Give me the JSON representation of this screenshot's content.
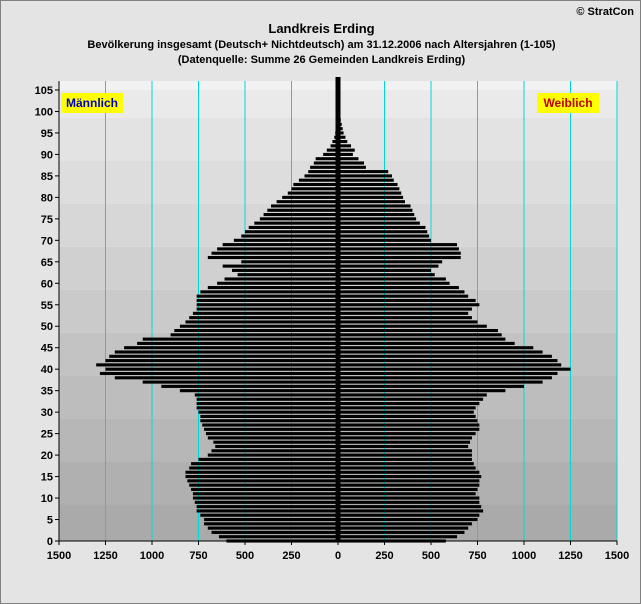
{
  "header": {
    "title": "Landkreis Erding",
    "subtitle": "Bevölkerung  insgesamt (Deutsch+ Nichtdeutsch) am 31.12.2006 nach Altersjahren (1-105)",
    "source": "(Datenquelle: Summe 26 Gemeinden Landkreis Erding)",
    "copyright": "© StratCon"
  },
  "colors": {
    "bar": "#000000",
    "gridline": "#00d8d8",
    "label_bg": "#ffff00",
    "male_label": "#0000c0",
    "female_label": "#c00000",
    "band_light": "#ededed",
    "band_dark": "#cfcfcf"
  },
  "chart_data": {
    "type": "bar",
    "orientation": "horizontal",
    "layout": "population-pyramid",
    "xlim": [
      -1500,
      1500
    ],
    "ylim": [
      0,
      105
    ],
    "x_ticks": [
      "1500",
      "1250",
      "1000",
      "750",
      "500",
      "250",
      "0",
      "250",
      "500",
      "750",
      "1000",
      "1250",
      "1500"
    ],
    "y_ticks": [
      "0",
      "5",
      "10",
      "15",
      "20",
      "25",
      "30",
      "35",
      "40",
      "45",
      "50",
      "55",
      "60",
      "65",
      "70",
      "75",
      "80",
      "85",
      "90",
      "95",
      "100",
      "105"
    ],
    "grid": true,
    "series": [
      {
        "name": "Männlich",
        "side": "left",
        "ages": [
          0,
          1,
          2,
          3,
          4,
          5,
          6,
          7,
          8,
          9,
          10,
          11,
          12,
          13,
          14,
          15,
          16,
          17,
          18,
          19,
          20,
          21,
          22,
          23,
          24,
          25,
          26,
          27,
          28,
          29,
          30,
          31,
          32,
          33,
          34,
          35,
          36,
          37,
          38,
          39,
          40,
          41,
          42,
          43,
          44,
          45,
          46,
          47,
          48,
          49,
          50,
          51,
          52,
          53,
          54,
          55,
          56,
          57,
          58,
          59,
          60,
          61,
          62,
          63,
          64,
          65,
          66,
          67,
          68,
          69,
          70,
          71,
          72,
          73,
          74,
          75,
          76,
          77,
          78,
          79,
          80,
          81,
          82,
          83,
          84,
          85,
          86,
          87,
          88,
          89,
          90,
          91,
          92,
          93,
          94,
          95,
          96,
          97,
          98,
          99,
          100
        ],
        "values": [
          600,
          640,
          680,
          700,
          720,
          720,
          740,
          760,
          760,
          770,
          780,
          780,
          790,
          800,
          810,
          820,
          820,
          800,
          790,
          750,
          700,
          680,
          660,
          670,
          700,
          710,
          720,
          730,
          740,
          740,
          750,
          760,
          760,
          760,
          770,
          850,
          950,
          1050,
          1200,
          1280,
          1250,
          1300,
          1250,
          1230,
          1200,
          1150,
          1080,
          1050,
          900,
          880,
          850,
          820,
          800,
          780,
          760,
          760,
          760,
          760,
          740,
          700,
          650,
          610,
          540,
          570,
          620,
          520,
          700,
          680,
          650,
          620,
          560,
          520,
          500,
          480,
          450,
          420,
          400,
          380,
          360,
          330,
          300,
          270,
          250,
          240,
          210,
          180,
          160,
          150,
          130,
          120,
          80,
          60,
          40,
          30,
          20,
          15,
          10,
          8,
          6,
          4,
          2
        ]
      },
      {
        "name": "Weiblich",
        "side": "right",
        "ages": [
          0,
          1,
          2,
          3,
          4,
          5,
          6,
          7,
          8,
          9,
          10,
          11,
          12,
          13,
          14,
          15,
          16,
          17,
          18,
          19,
          20,
          21,
          22,
          23,
          24,
          25,
          26,
          27,
          28,
          29,
          30,
          31,
          32,
          33,
          34,
          35,
          36,
          37,
          38,
          39,
          40,
          41,
          42,
          43,
          44,
          45,
          46,
          47,
          48,
          49,
          50,
          51,
          52,
          53,
          54,
          55,
          56,
          57,
          58,
          59,
          60,
          61,
          62,
          63,
          64,
          65,
          66,
          67,
          68,
          69,
          70,
          71,
          72,
          73,
          74,
          75,
          76,
          77,
          78,
          79,
          80,
          81,
          82,
          83,
          84,
          85,
          86,
          87,
          88,
          89,
          90,
          91,
          92,
          93,
          94,
          95,
          96,
          97,
          98,
          99,
          100
        ],
        "values": [
          580,
          640,
          680,
          700,
          720,
          750,
          760,
          780,
          770,
          760,
          760,
          740,
          750,
          760,
          760,
          770,
          760,
          740,
          730,
          720,
          720,
          720,
          700,
          710,
          720,
          740,
          760,
          760,
          750,
          740,
          730,
          740,
          760,
          780,
          800,
          900,
          1000,
          1100,
          1150,
          1180,
          1250,
          1200,
          1180,
          1150,
          1100,
          1050,
          950,
          900,
          880,
          860,
          800,
          750,
          720,
          700,
          720,
          760,
          740,
          700,
          680,
          650,
          600,
          580,
          520,
          500,
          540,
          560,
          660,
          660,
          650,
          640,
          500,
          490,
          480,
          470,
          440,
          420,
          410,
          400,
          390,
          360,
          350,
          340,
          330,
          320,
          300,
          290,
          270,
          150,
          140,
          110,
          80,
          90,
          70,
          50,
          40,
          30,
          25,
          20,
          15,
          10,
          5
        ]
      }
    ],
    "annotations": [
      "Männlich",
      "Weiblich"
    ]
  }
}
